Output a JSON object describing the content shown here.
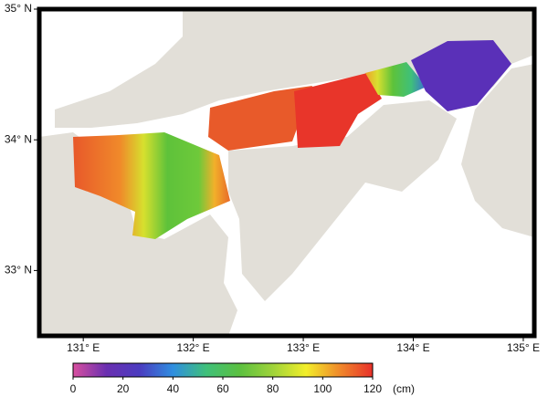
{
  "map": {
    "xlim": [
      130.6,
      135.1
    ],
    "ylim": [
      32.5,
      35.0
    ],
    "xticks": [
      {
        "value": 131,
        "label": "131° E"
      },
      {
        "value": 132,
        "label": "132° E"
      },
      {
        "value": 133,
        "label": "133° E"
      },
      {
        "value": 134,
        "label": "134° E"
      },
      {
        "value": 135,
        "label": "135° E"
      }
    ],
    "yticks": [
      {
        "value": 33,
        "label": "33° N"
      },
      {
        "value": 34,
        "label": "34° N"
      },
      {
        "value": 35,
        "label": "35° N"
      }
    ],
    "colorbar": {
      "range": [
        0,
        120
      ],
      "ticks": [
        0,
        20,
        40,
        60,
        80,
        100,
        120
      ],
      "unit": "(cm)",
      "colors": [
        "#d9509f",
        "#6a2fb0",
        "#4b3cc0",
        "#2f8ee0",
        "#3fc07a",
        "#5bc040",
        "#9fd33a",
        "#f2ee2a",
        "#f08a2a",
        "#e8302a"
      ]
    }
  }
}
